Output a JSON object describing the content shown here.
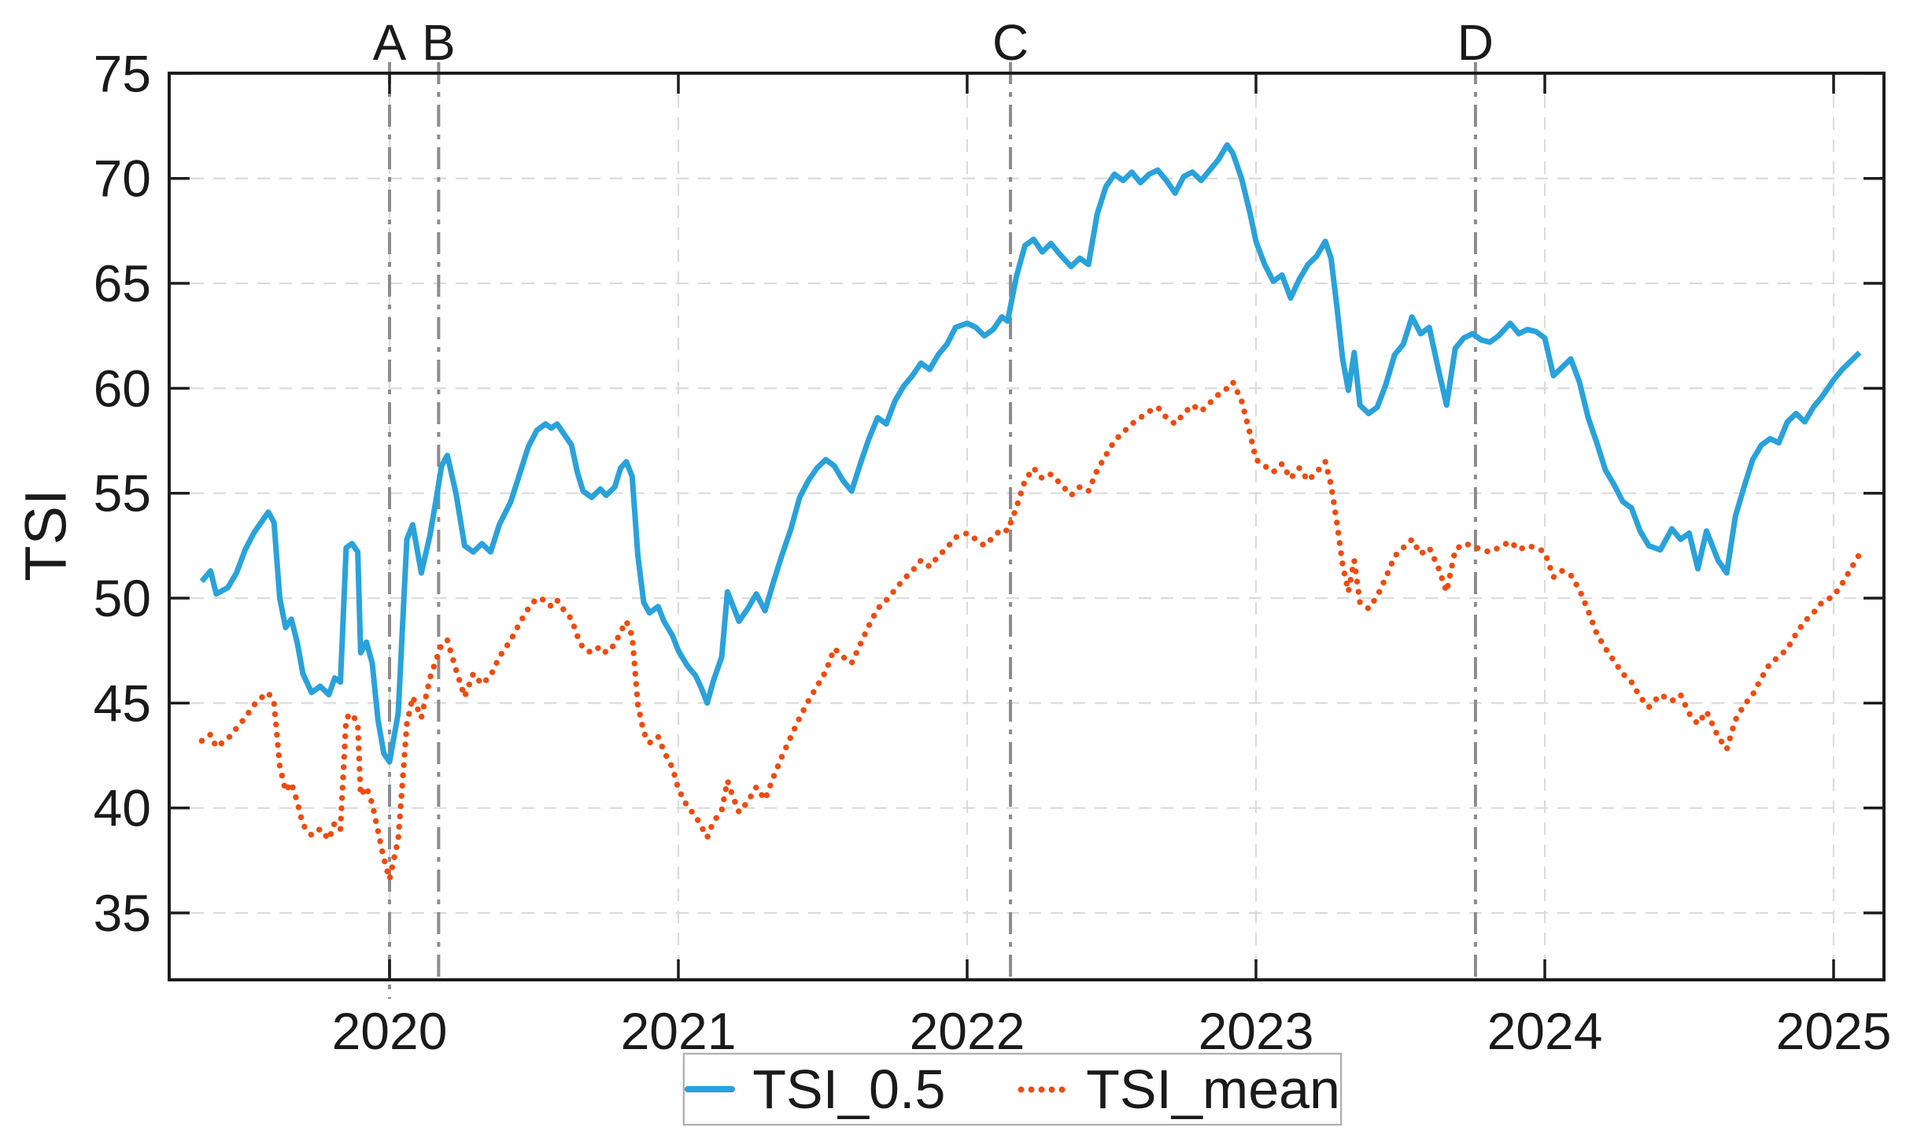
{
  "chart_data": {
    "type": "line",
    "title": "",
    "xlabel": "",
    "ylabel": "TSI",
    "xlim": [
      2019.24,
      2025.17
    ],
    "ylim": [
      31.8,
      75
    ],
    "x_ticks": [
      2020,
      2021,
      2022,
      2023,
      2024,
      2025
    ],
    "x_tick_labels": [
      "2020",
      "2021",
      "2022",
      "2023",
      "2024",
      "2025"
    ],
    "y_ticks": [
      35,
      40,
      45,
      50,
      55,
      60,
      65,
      70,
      75
    ],
    "grid": true,
    "grid_color": "#dbdbdb",
    "frame_color": "#1c1c1c",
    "text_color": "#1a1a1a",
    "event_line_color": "#8c8c8c",
    "event_lines": [
      {
        "label": "A",
        "x": 2020.0
      },
      {
        "label": "B",
        "x": 2020.17
      },
      {
        "label": "C",
        "x": 2022.15
      },
      {
        "label": "D",
        "x": 2023.76
      }
    ],
    "legend_position": "bottom-center",
    "x": [
      2019.35,
      2019.38,
      2019.4,
      2019.44,
      2019.47,
      2019.5,
      2019.53,
      2019.56,
      2019.58,
      2019.6,
      2019.62,
      2019.64,
      2019.66,
      2019.68,
      2019.7,
      2019.73,
      2019.76,
      2019.79,
      2019.81,
      2019.83,
      2019.85,
      2019.87,
      2019.89,
      2019.9,
      2019.92,
      2019.94,
      2019.96,
      2019.98,
      2020.0,
      2020.03,
      2020.06,
      2020.08,
      2020.11,
      2020.14,
      2020.16,
      2020.18,
      2020.2,
      2020.23,
      2020.26,
      2020.29,
      2020.32,
      2020.35,
      2020.38,
      2020.42,
      2020.45,
      2020.48,
      2020.51,
      2020.54,
      2020.56,
      2020.58,
      2020.6,
      2020.63,
      2020.65,
      2020.67,
      2020.7,
      2020.73,
      2020.75,
      2020.78,
      2020.8,
      2020.82,
      2020.84,
      2020.86,
      2020.88,
      2020.9,
      2020.93,
      2020.95,
      2020.98,
      2021.0,
      2021.03,
      2021.06,
      2021.08,
      2021.1,
      2021.12,
      2021.15,
      2021.17,
      2021.19,
      2021.21,
      2021.24,
      2021.27,
      2021.3,
      2021.33,
      2021.36,
      2021.39,
      2021.42,
      2021.45,
      2021.48,
      2021.51,
      2021.54,
      2021.57,
      2021.6,
      2021.63,
      2021.66,
      2021.69,
      2021.72,
      2021.75,
      2021.78,
      2021.81,
      2021.84,
      2021.87,
      2021.9,
      2021.93,
      2021.96,
      2022.0,
      2022.03,
      2022.06,
      2022.09,
      2022.12,
      2022.14,
      2022.17,
      2022.2,
      2022.23,
      2022.26,
      2022.29,
      2022.32,
      2022.36,
      2022.39,
      2022.42,
      2022.45,
      2022.48,
      2022.51,
      2022.54,
      2022.57,
      2022.6,
      2022.63,
      2022.66,
      2022.69,
      2022.72,
      2022.75,
      2022.78,
      2022.81,
      2022.84,
      2022.87,
      2022.9,
      2022.92,
      2022.95,
      2022.98,
      2023.0,
      2023.03,
      2023.06,
      2023.09,
      2023.12,
      2023.15,
      2023.18,
      2023.21,
      2023.24,
      2023.26,
      2023.28,
      2023.3,
      2023.32,
      2023.34,
      2023.36,
      2023.39,
      2023.42,
      2023.45,
      2023.48,
      2023.51,
      2023.54,
      2023.57,
      2023.6,
      2023.63,
      2023.66,
      2023.69,
      2023.72,
      2023.75,
      2023.78,
      2023.81,
      2023.84,
      2023.88,
      2023.91,
      2023.94,
      2023.97,
      2024.0,
      2024.03,
      2024.06,
      2024.09,
      2024.12,
      2024.15,
      2024.18,
      2024.21,
      2024.24,
      2024.27,
      2024.3,
      2024.33,
      2024.36,
      2024.4,
      2024.44,
      2024.47,
      2024.5,
      2024.53,
      2024.56,
      2024.6,
      2024.63,
      2024.66,
      2024.69,
      2024.72,
      2024.75,
      2024.78,
      2024.81,
      2024.84,
      2024.87,
      2024.9,
      2024.93,
      2024.96,
      2025.0,
      2025.03,
      2025.06,
      2025.09
    ],
    "series": [
      {
        "name": "TSI_0.5",
        "color": "#29a2db",
        "line_style": "solid",
        "y": [
          50.8,
          51.3,
          50.2,
          50.5,
          51.2,
          52.3,
          53.1,
          53.7,
          54.1,
          53.6,
          50.0,
          48.6,
          49.0,
          47.9,
          46.4,
          45.5,
          45.8,
          45.4,
          46.2,
          46.0,
          52.4,
          52.6,
          52.2,
          47.4,
          47.9,
          46.9,
          44.2,
          42.6,
          42.2,
          44.5,
          52.8,
          53.5,
          51.2,
          53.0,
          54.6,
          56.3,
          56.8,
          55.0,
          52.5,
          52.2,
          52.6,
          52.2,
          53.5,
          54.6,
          55.9,
          57.2,
          58.0,
          58.3,
          58.1,
          58.3,
          57.9,
          57.3,
          56.0,
          55.1,
          54.8,
          55.2,
          54.9,
          55.3,
          56.2,
          56.5,
          55.8,
          52.0,
          49.8,
          49.3,
          49.6,
          48.9,
          48.2,
          47.5,
          46.8,
          46.3,
          45.7,
          45.0,
          46.0,
          47.2,
          50.3,
          49.6,
          48.9,
          49.5,
          50.2,
          49.4,
          50.8,
          52.1,
          53.3,
          54.8,
          55.6,
          56.2,
          56.6,
          56.3,
          55.6,
          55.1,
          56.4,
          57.6,
          58.6,
          58.3,
          59.4,
          60.1,
          60.6,
          61.2,
          60.9,
          61.6,
          62.1,
          62.9,
          63.1,
          62.9,
          62.5,
          62.8,
          63.4,
          63.2,
          65.3,
          66.8,
          67.1,
          66.5,
          66.9,
          66.4,
          65.8,
          66.2,
          65.9,
          68.3,
          69.6,
          70.2,
          69.9,
          70.3,
          69.8,
          70.2,
          70.4,
          69.9,
          69.3,
          70.1,
          70.3,
          69.9,
          70.4,
          70.9,
          71.6,
          71.2,
          70.0,
          68.3,
          67.0,
          65.9,
          65.1,
          65.4,
          64.3,
          65.2,
          65.9,
          66.3,
          67.0,
          66.2,
          63.9,
          61.4,
          59.9,
          61.7,
          59.2,
          58.8,
          59.1,
          60.2,
          61.6,
          62.1,
          63.4,
          62.6,
          62.9,
          61.0,
          59.2,
          61.9,
          62.4,
          62.6,
          62.3,
          62.2,
          62.5,
          63.1,
          62.6,
          62.8,
          62.7,
          62.4,
          60.6,
          61.0,
          61.4,
          60.3,
          58.6,
          57.4,
          56.1,
          55.4,
          54.6,
          54.3,
          53.2,
          52.5,
          52.3,
          53.3,
          52.8,
          53.1,
          51.4,
          53.2,
          51.8,
          51.2,
          53.9,
          55.3,
          56.6,
          57.3,
          57.6,
          57.4,
          58.4,
          58.8,
          58.4,
          59.1,
          59.6,
          60.4,
          60.9,
          61.3,
          61.7
        ]
      },
      {
        "name": "TSI_mean",
        "color": "#f04b0e",
        "line_style": "dotted",
        "y": [
          43.2,
          43.5,
          42.9,
          43.3,
          43.8,
          44.3,
          44.9,
          45.3,
          45.5,
          45.0,
          42.0,
          40.8,
          41.2,
          40.3,
          39.2,
          38.7,
          39.0,
          38.5,
          39.3,
          39.0,
          44.3,
          44.5,
          44.0,
          40.6,
          41.0,
          40.2,
          38.9,
          37.6,
          36.6,
          38.5,
          44.0,
          45.3,
          44.3,
          46.2,
          47.0,
          47.8,
          48.0,
          46.6,
          45.3,
          46.4,
          45.9,
          46.3,
          47.2,
          48.0,
          48.8,
          49.5,
          50.0,
          49.9,
          49.6,
          49.9,
          49.5,
          49.0,
          48.2,
          47.6,
          47.4,
          47.7,
          47.4,
          47.8,
          48.4,
          48.9,
          48.2,
          44.9,
          43.6,
          43.1,
          43.4,
          42.7,
          41.9,
          40.9,
          40.1,
          39.6,
          39.1,
          38.6,
          39.3,
          39.9,
          41.3,
          40.5,
          39.8,
          40.3,
          41.0,
          40.4,
          41.5,
          42.5,
          43.4,
          44.3,
          45.1,
          45.8,
          46.5,
          47.6,
          47.2,
          46.9,
          47.8,
          48.7,
          49.5,
          49.9,
          50.4,
          50.9,
          51.3,
          51.8,
          51.5,
          52.0,
          52.4,
          52.9,
          53.1,
          52.8,
          52.5,
          52.9,
          53.3,
          53.2,
          54.3,
          55.6,
          56.2,
          55.7,
          55.9,
          55.5,
          54.9,
          55.3,
          55.1,
          56.1,
          56.8,
          57.5,
          57.9,
          58.3,
          58.6,
          58.9,
          59.1,
          58.6,
          58.3,
          58.8,
          59.2,
          58.9,
          59.3,
          59.7,
          60.0,
          60.3,
          59.4,
          57.8,
          56.6,
          56.3,
          56.0,
          56.4,
          55.7,
          56.2,
          55.6,
          56.0,
          56.5,
          55.4,
          53.6,
          51.6,
          50.3,
          51.8,
          49.8,
          49.5,
          50.1,
          51.0,
          52.0,
          52.4,
          52.8,
          52.1,
          52.4,
          51.5,
          50.3,
          52.3,
          52.6,
          52.5,
          52.3,
          52.2,
          52.4,
          52.7,
          52.3,
          52.5,
          52.4,
          52.2,
          51.0,
          51.3,
          51.1,
          50.4,
          49.4,
          48.3,
          47.6,
          47.0,
          46.4,
          46.0,
          45.3,
          44.8,
          45.4,
          45.1,
          45.4,
          44.5,
          44.0,
          44.6,
          43.4,
          42.8,
          44.2,
          44.9,
          45.4,
          46.2,
          46.9,
          47.2,
          47.6,
          48.3,
          48.9,
          49.3,
          49.8,
          50.1,
          50.7,
          51.4,
          52.1
        ]
      }
    ]
  }
}
